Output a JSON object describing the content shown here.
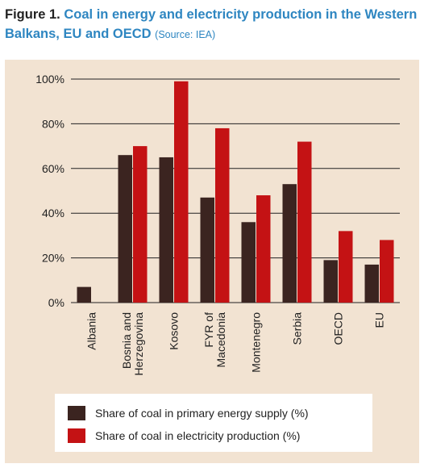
{
  "figure": {
    "label": "Figure 1.",
    "title": "Coal in energy and electricity production in the Western Balkans, EU and OECD",
    "source": "(Source: IEA)"
  },
  "colors": {
    "panel": "#f2e3d2",
    "primary_energy": "#3b2420",
    "electricity": "#c41214",
    "axis": "#222222"
  },
  "chart_data": {
    "type": "bar",
    "categories": [
      "Albania",
      "Bosnia and Herzegovina",
      "Kosovo",
      "FYR of Macedonia",
      "Montenegro",
      "Serbia",
      "OECD",
      "EU"
    ],
    "category_lines": [
      [
        "Albania"
      ],
      [
        "Bosnia and",
        "Herzegovina"
      ],
      [
        "Kosovo"
      ],
      [
        "FYR of",
        "Macedonia"
      ],
      [
        "Montenegro"
      ],
      [
        "Serbia"
      ],
      [
        "OECD"
      ],
      [
        "EU"
      ]
    ],
    "series": [
      {
        "name": "Share of coal in primary energy supply (%)",
        "values": [
          7,
          66,
          65,
          47,
          36,
          53,
          19,
          17
        ]
      },
      {
        "name": "Share of coal in electricity production (%)",
        "values": [
          0,
          70,
          99,
          78,
          48,
          72,
          32,
          28
        ]
      }
    ],
    "ylim": [
      0,
      100
    ],
    "yticks": [
      0,
      20,
      40,
      60,
      80,
      100
    ],
    "ytick_labels": [
      "0%",
      "20%",
      "40%",
      "60%",
      "80%",
      "100%"
    ],
    "grid": true,
    "legend_position": "bottom"
  }
}
